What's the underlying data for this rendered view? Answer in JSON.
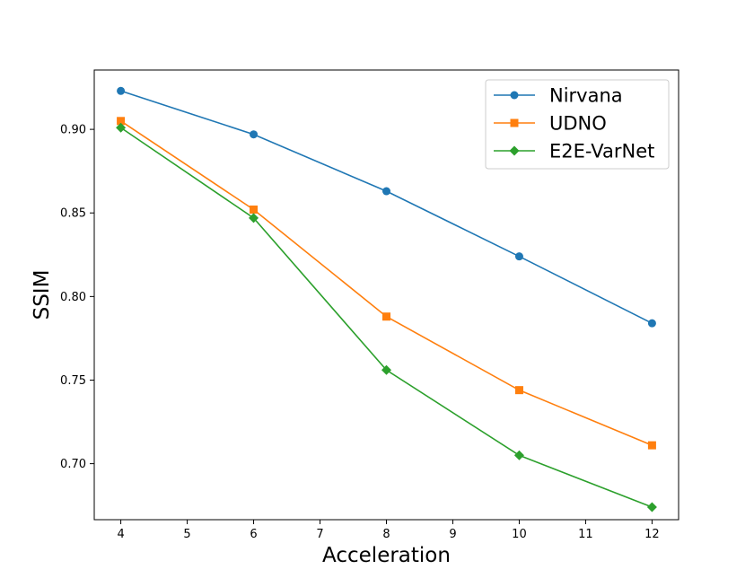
{
  "chart_data": {
    "type": "line",
    "title": "",
    "xlabel": "Acceleration",
    "ylabel": "SSIM",
    "xlim": [
      3.6,
      12.4
    ],
    "ylim": [
      0.6665,
      0.9355
    ],
    "xticks": [
      4,
      5,
      6,
      7,
      8,
      9,
      10,
      11,
      12
    ],
    "yticks": [
      0.7,
      0.75,
      0.8,
      0.85,
      0.9
    ],
    "xtick_labels": [
      "4",
      "5",
      "6",
      "7",
      "8",
      "9",
      "10",
      "11",
      "12"
    ],
    "ytick_labels": [
      "0.70",
      "0.75",
      "0.80",
      "0.85",
      "0.90"
    ],
    "grid": false,
    "legend_position": "top-right",
    "series": [
      {
        "name": "Nirvana",
        "marker": "circle",
        "color": "#1f77b4",
        "x": [
          4,
          6,
          8,
          10,
          12
        ],
        "values": [
          0.923,
          0.897,
          0.863,
          0.824,
          0.784
        ]
      },
      {
        "name": "UDNO",
        "marker": "square",
        "color": "#ff7f0e",
        "x": [
          4,
          6,
          8,
          10,
          12
        ],
        "values": [
          0.905,
          0.852,
          0.788,
          0.744,
          0.711
        ]
      },
      {
        "name": "E2E-VarNet",
        "marker": "diamond",
        "color": "#2ca02c",
        "x": [
          4,
          6,
          8,
          10,
          12
        ],
        "values": [
          0.901,
          0.847,
          0.756,
          0.705,
          0.674
        ]
      }
    ]
  }
}
